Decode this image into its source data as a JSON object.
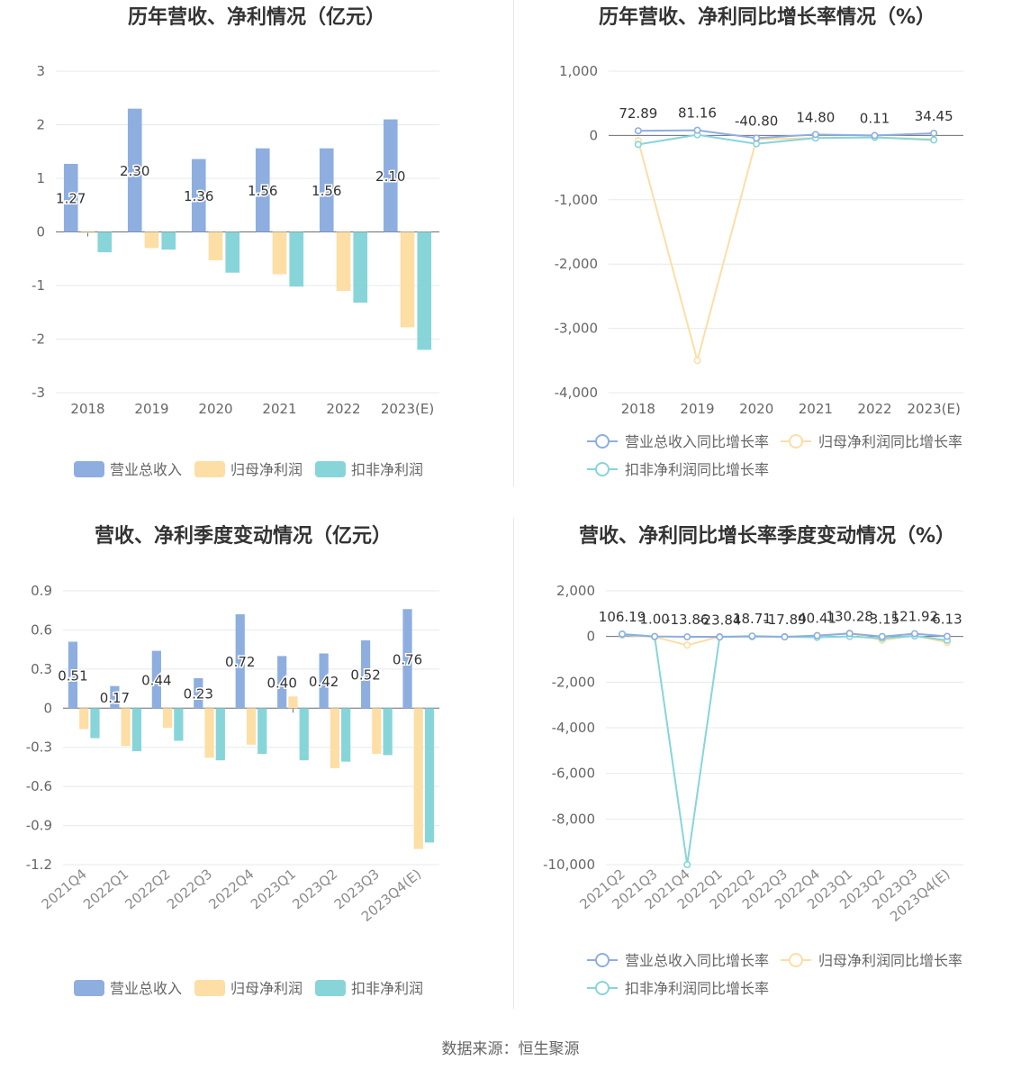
{
  "colors": {
    "revenue": "#8eaee0",
    "net_profit": "#fddea5",
    "deducted_profit": "#87d5d9",
    "revenue_line": "#8eaee0",
    "net_profit_line": "#fddea5",
    "deducted_profit_line": "#87d5d9",
    "axis_text": "#666666",
    "title": "#333333",
    "grid": "#e6e8ee"
  },
  "source_text": "数据来源：恒生聚源",
  "chart_data": [
    {
      "id": "annual_bar",
      "type": "bar",
      "title": "历年营收、净利情况（亿元）",
      "categories": [
        "2018",
        "2019",
        "2020",
        "2021",
        "2022",
        "2023(E)"
      ],
      "ylim": [
        -3,
        3
      ],
      "yticks": [
        "3",
        "2",
        "1",
        "0",
        "-1",
        "-2",
        "-3"
      ],
      "ytick_values": [
        3,
        2,
        1,
        0,
        -1,
        -2,
        -3
      ],
      "grid": true,
      "legend_position": "bottom",
      "series": [
        {
          "name": "营业总收入",
          "color_key": "revenue",
          "values": [
            1.27,
            2.3,
            1.36,
            1.56,
            1.56,
            2.1
          ],
          "labels": [
            "1.27",
            "2.30",
            "1.36",
            "1.56",
            "1.56",
            "2.10"
          ]
        },
        {
          "name": "归母净利润",
          "color_key": "net_profit",
          "values": [
            -0.02,
            -0.3,
            -0.53,
            -0.79,
            -1.1,
            -1.78
          ]
        },
        {
          "name": "扣非净利润",
          "color_key": "deducted_profit",
          "values": [
            -0.38,
            -0.33,
            -0.76,
            -1.02,
            -1.32,
            -2.2
          ]
        }
      ]
    },
    {
      "id": "annual_line",
      "type": "line",
      "title": "历年营收、净利同比增长率情况（%）",
      "categories": [
        "2018",
        "2019",
        "2020",
        "2021",
        "2022",
        "2023(E)"
      ],
      "ylim": [
        -4000,
        1000
      ],
      "yticks": [
        "1,000",
        "0",
        "-1,000",
        "-2,000",
        "-3,000",
        "-4,000"
      ],
      "ytick_values": [
        1000,
        0,
        -1000,
        -2000,
        -3000,
        -4000
      ],
      "grid": true,
      "legend_position": "bottom",
      "series": [
        {
          "name": "营业总收入同比增长率",
          "color_key": "revenue_line",
          "values": [
            72.89,
            81.16,
            -40.8,
            14.8,
            0.11,
            34.45
          ],
          "labels": [
            "72.89",
            "81.16",
            "-40.80",
            "14.80",
            "0.11",
            "34.45"
          ]
        },
        {
          "name": "归母净利润同比增长率",
          "color_key": "net_profit_line",
          "values": [
            -80,
            -3500,
            -60,
            -40,
            -30,
            -60
          ]
        },
        {
          "name": "扣非净利润同比增长率",
          "color_key": "deducted_profit_line",
          "values": [
            -140,
            10,
            -130,
            -40,
            -30,
            -70
          ]
        }
      ]
    },
    {
      "id": "quarter_bar",
      "type": "bar",
      "title": "营收、净利季度变动情况（亿元）",
      "categories": [
        "2021Q4",
        "2022Q1",
        "2022Q2",
        "2022Q3",
        "2022Q4",
        "2023Q1",
        "2023Q2",
        "2023Q3",
        "2023Q4(E)"
      ],
      "ylim": [
        -1.2,
        0.9
      ],
      "yticks": [
        "0.9",
        "0.6",
        "0.3",
        "0",
        "-0.3",
        "-0.6",
        "-0.9",
        "-1.2"
      ],
      "ytick_values": [
        0.9,
        0.6,
        0.3,
        0,
        -0.3,
        -0.6,
        -0.9,
        -1.2
      ],
      "grid": true,
      "legend_position": "bottom",
      "series": [
        {
          "name": "营业总收入",
          "color_key": "revenue",
          "values": [
            0.51,
            0.17,
            0.44,
            0.23,
            0.72,
            0.4,
            0.42,
            0.52,
            0.76
          ],
          "labels": [
            "0.51",
            "0.17",
            "0.44",
            "0.23",
            "0.72",
            "0.40",
            "0.42",
            "0.52",
            "0.76"
          ]
        },
        {
          "name": "归母净利润",
          "color_key": "net_profit",
          "values": [
            -0.16,
            -0.29,
            -0.15,
            -0.38,
            -0.28,
            0.09,
            -0.46,
            -0.35,
            -1.08
          ]
        },
        {
          "name": "扣非净利润",
          "color_key": "deducted_profit",
          "values": [
            -0.23,
            -0.33,
            -0.25,
            -0.4,
            -0.35,
            -0.4,
            -0.41,
            -0.36,
            -1.03
          ]
        }
      ]
    },
    {
      "id": "quarter_line",
      "type": "line",
      "title": "营收、净利同比增长率季度变动情况（%）",
      "categories": [
        "2021Q2",
        "2021Q3",
        "2021Q4",
        "2022Q1",
        "2022Q2",
        "2022Q3",
        "2022Q4",
        "2023Q1",
        "2023Q2",
        "2023Q3",
        "2023Q4(E)"
      ],
      "ylim": [
        -10000,
        2000
      ],
      "yticks": [
        "2,000",
        "0",
        "-2,000",
        "-4,000",
        "-6,000",
        "-8,000",
        "-10,000"
      ],
      "ytick_values": [
        2000,
        0,
        -2000,
        -4000,
        -6000,
        -8000,
        -10000
      ],
      "grid": true,
      "legend_position": "bottom",
      "series": [
        {
          "name": "营业总收入同比增长率",
          "color_key": "revenue_line",
          "values": [
            106.19,
            1.0,
            -13.86,
            -23.84,
            18.71,
            -17.89,
            40.41,
            130.28,
            -3.15,
            121.92,
            6.13
          ],
          "labels": [
            "106.19",
            "1.00",
            "-13.86",
            "-23.84",
            "18.71",
            "-17.89",
            "40.41",
            "130.28",
            "-3.15",
            "121.92",
            "6.13"
          ]
        },
        {
          "name": "归母净利润同比增长率",
          "color_key": "net_profit_line",
          "values": [
            60,
            -20,
            -380,
            -10,
            -10,
            -10,
            10,
            150,
            -170,
            50,
            -260
          ]
        },
        {
          "name": "扣非净利润同比增长率",
          "color_key": "deducted_profit_line",
          "values": [
            80,
            -10,
            -10000,
            -10,
            -10,
            -10,
            -40,
            0,
            -80,
            20,
            -170
          ]
        }
      ]
    }
  ]
}
